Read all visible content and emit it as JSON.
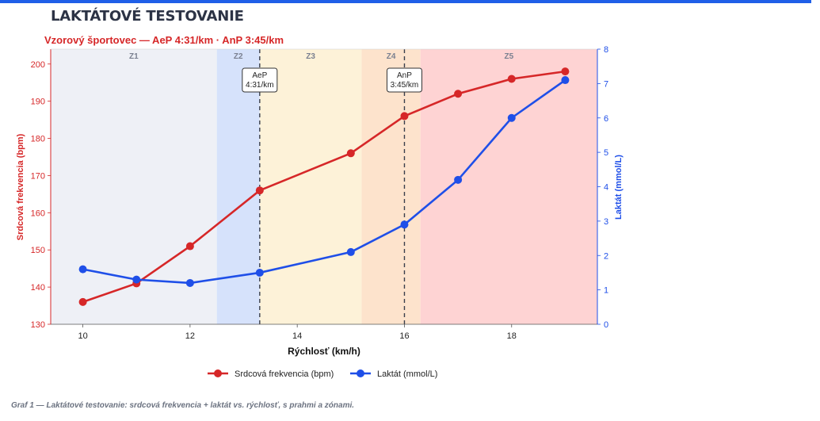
{
  "page": {
    "title": "LAKTÁTOVÉ TESTOVANIE",
    "caption": "Graf 1 — Laktátové testovanie: srdcová frekvencia + laktát vs. rýchlosť, s prahmi a zónami."
  },
  "chart_data": {
    "type": "line",
    "title": "Vzorový športovec — AeP 4:31/km · AnP 3:45/km",
    "xlabel": "Rýchlosť (km/h)",
    "ylabel_left": "Srdcová frekvencia (bpm)",
    "ylabel_right": "Laktát (mmol/L)",
    "xlim": [
      9.4,
      19.6
    ],
    "ylim_left": [
      130,
      204
    ],
    "ylim_right": [
      0,
      8
    ],
    "xticks": [
      10,
      12,
      14,
      16,
      18
    ],
    "yticks_left": [
      130,
      140,
      150,
      160,
      170,
      180,
      190,
      200
    ],
    "yticks_right": [
      0,
      1,
      2,
      3,
      4,
      5,
      6,
      7,
      8
    ],
    "x": [
      10,
      11,
      12,
      13.3,
      15,
      16,
      17,
      18,
      19
    ],
    "series": [
      {
        "name": "Srdcová frekvencia (bpm)",
        "axis": "left",
        "color": "#d62728",
        "values": [
          136,
          141,
          151,
          166,
          176,
          186,
          192,
          196,
          198
        ]
      },
      {
        "name": "Laktát (mmol/L)",
        "axis": "right",
        "color": "#1f4fe8",
        "values": [
          1.6,
          1.3,
          1.2,
          1.5,
          2.1,
          2.9,
          4.2,
          6.0,
          7.1
        ]
      }
    ],
    "zones": [
      {
        "label": "Z1",
        "from": 9.4,
        "to": 12.5,
        "color": "#eef0f6"
      },
      {
        "label": "Z2",
        "from": 12.5,
        "to": 13.3,
        "color": "#d6e2fb"
      },
      {
        "label": "Z3",
        "from": 13.3,
        "to": 15.2,
        "color": "#fdf2d8"
      },
      {
        "label": "Z4",
        "from": 15.2,
        "to": 16.3,
        "color": "#fde3cc"
      },
      {
        "label": "Z5",
        "from": 16.3,
        "to": 19.6,
        "color": "#fed3d3"
      }
    ],
    "thresholds": [
      {
        "x": 13.3,
        "label_line1": "AeP",
        "label_line2": "4:31/km"
      },
      {
        "x": 16.0,
        "label_line1": "AnP",
        "label_line2": "3:45/km"
      }
    ],
    "grid": false,
    "legend": "bottom-center"
  }
}
